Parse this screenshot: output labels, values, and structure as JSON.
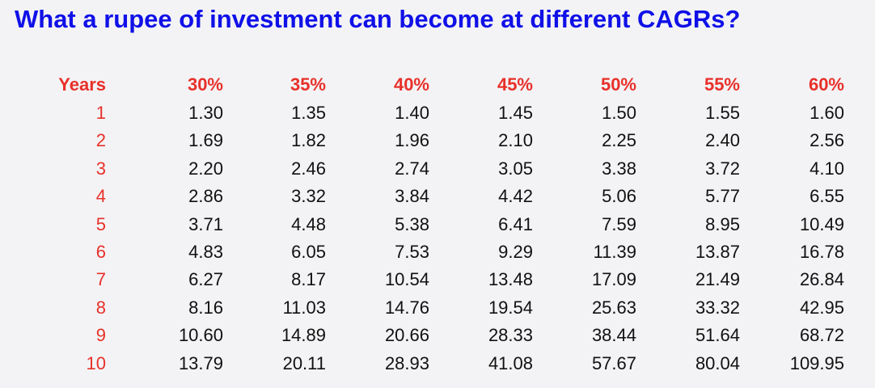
{
  "title": "What a rupee of investment can become at different CAGRs?",
  "table": {
    "header": [
      "Years",
      "30%",
      "35%",
      "40%",
      "45%",
      "50%",
      "55%",
      "60%"
    ],
    "rows": [
      [
        "1",
        "1.30",
        "1.35",
        "1.40",
        "1.45",
        "1.50",
        "1.55",
        "1.60"
      ],
      [
        "2",
        "1.69",
        "1.82",
        "1.96",
        "2.10",
        "2.25",
        "2.40",
        "2.56"
      ],
      [
        "3",
        "2.20",
        "2.46",
        "2.74",
        "3.05",
        "3.38",
        "3.72",
        "4.10"
      ],
      [
        "4",
        "2.86",
        "3.32",
        "3.84",
        "4.42",
        "5.06",
        "5.77",
        "6.55"
      ],
      [
        "5",
        "3.71",
        "4.48",
        "5.38",
        "6.41",
        "7.59",
        "8.95",
        "10.49"
      ],
      [
        "6",
        "4.83",
        "6.05",
        "7.53",
        "9.29",
        "11.39",
        "13.87",
        "16.78"
      ],
      [
        "7",
        "6.27",
        "8.17",
        "10.54",
        "13.48",
        "17.09",
        "21.49",
        "26.84"
      ],
      [
        "8",
        "8.16",
        "11.03",
        "14.76",
        "19.54",
        "25.63",
        "33.32",
        "42.95"
      ],
      [
        "9",
        "10.60",
        "14.89",
        "20.66",
        "28.33",
        "38.44",
        "51.64",
        "68.72"
      ],
      [
        "10",
        "13.79",
        "20.11",
        "28.93",
        "41.08",
        "57.67",
        "80.04",
        "109.95"
      ]
    ]
  }
}
